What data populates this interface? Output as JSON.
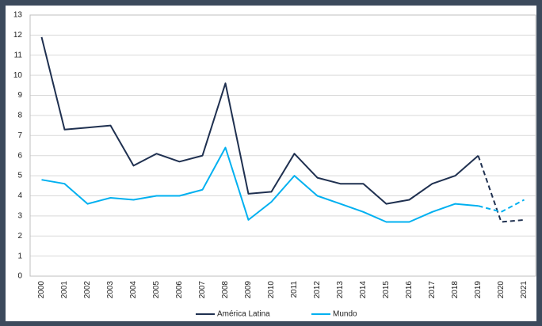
{
  "chart_data": {
    "type": "line",
    "categories": [
      "2000",
      "2001",
      "2002",
      "2003",
      "2004",
      "2005",
      "2006",
      "2007",
      "2008",
      "2009",
      "2010",
      "2011",
      "2012",
      "2013",
      "2014",
      "2015",
      "2016",
      "2017",
      "2018",
      "2019",
      "2020",
      "2021"
    ],
    "series": [
      {
        "name": "América Latina",
        "color": "#1f3050",
        "values": [
          11.9,
          7.3,
          7.4,
          7.5,
          5.5,
          6.1,
          5.7,
          6.0,
          9.6,
          4.1,
          4.2,
          6.1,
          4.9,
          4.6,
          4.6,
          3.6,
          3.8,
          4.6,
          5.0,
          6.0,
          null,
          null
        ],
        "projected_values": [
          null,
          null,
          null,
          null,
          null,
          null,
          null,
          null,
          null,
          null,
          null,
          null,
          null,
          null,
          null,
          null,
          null,
          null,
          null,
          6.0,
          2.7,
          2.8
        ]
      },
      {
        "name": "Mundo",
        "color": "#00b0f0",
        "values": [
          4.8,
          4.6,
          3.6,
          3.9,
          3.8,
          4.0,
          4.0,
          4.3,
          6.4,
          2.8,
          3.7,
          5.0,
          4.0,
          3.6,
          3.2,
          2.7,
          2.7,
          3.2,
          3.6,
          3.5,
          null,
          null
        ],
        "projected_values": [
          null,
          null,
          null,
          null,
          null,
          null,
          null,
          null,
          null,
          null,
          null,
          null,
          null,
          null,
          null,
          null,
          null,
          null,
          null,
          3.5,
          3.2,
          3.8
        ]
      }
    ],
    "ylim": [
      0,
      13
    ],
    "yticks": [
      0,
      1,
      2,
      3,
      4,
      5,
      6,
      7,
      8,
      9,
      10,
      11,
      12,
      13
    ],
    "grid": true,
    "legend": "bottom"
  }
}
